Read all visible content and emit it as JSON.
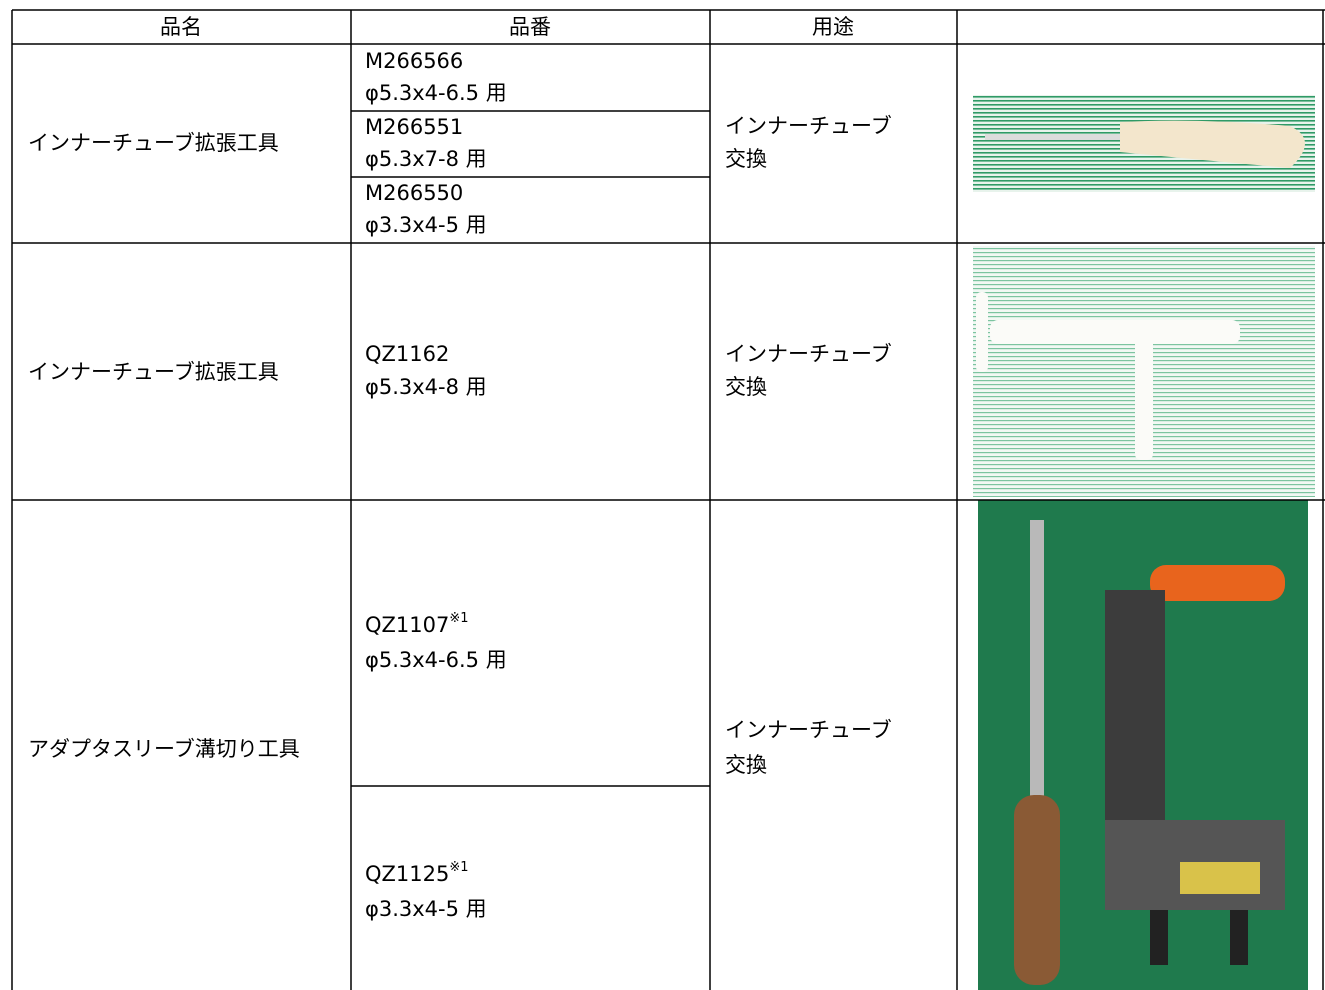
{
  "table": {
    "headers": [
      "品名",
      "品番",
      "用途"
    ],
    "rows": [
      {
        "name": "インナーチューブ拡張工具",
        "parts": [
          {
            "code": "M266566",
            "size": "φ5.3x4-6.5 用"
          },
          {
            "code": "M266551",
            "size": "φ5.3x7-8 用"
          },
          {
            "code": "M266550",
            "size": "φ3.3x4-5 用"
          }
        ],
        "use": [
          "インナーチューブ",
          "交換"
        ]
      },
      {
        "name": "インナーチューブ拡張工具",
        "parts": [
          {
            "code": "QZ1162",
            "size": "φ5.3x4-8 用"
          }
        ],
        "use": [
          "インナーチューブ",
          "交換"
        ]
      },
      {
        "name": "アダプタスリーブ溝切り工具",
        "parts": [
          {
            "code": "QZ1107",
            "note": "※1",
            "size": "φ5.3x4-6.5 用"
          },
          {
            "code": "QZ1125",
            "note": "※1",
            "size": "φ3.3x4-5 用"
          }
        ],
        "use": [
          "インナーチューブ",
          "交換"
        ]
      }
    ]
  }
}
